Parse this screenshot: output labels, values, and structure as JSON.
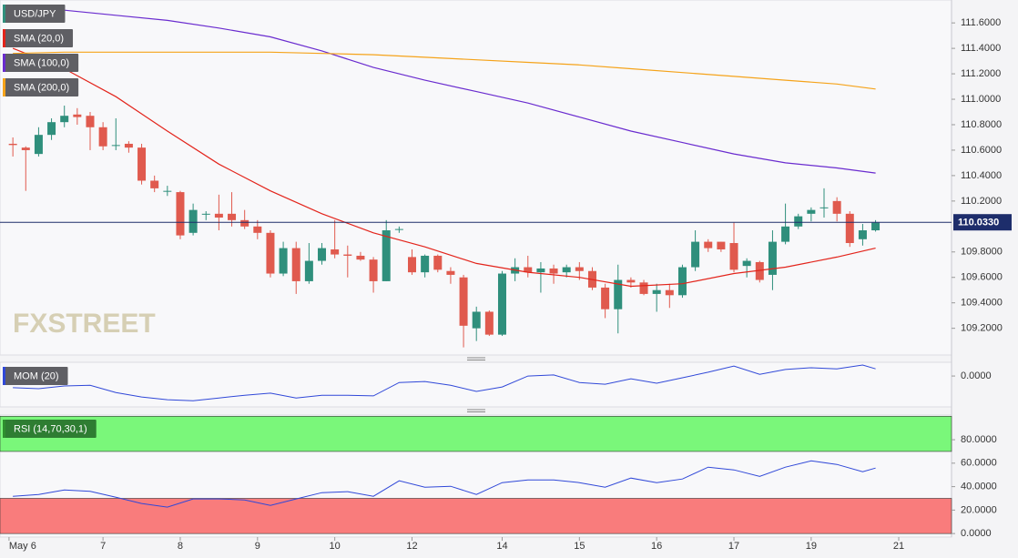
{
  "chart_data": [
    {
      "type": "candlestick",
      "title": "USD/JPY",
      "watermark": "FXSTREET",
      "x": [
        0,
        1,
        2,
        3,
        4,
        5,
        6,
        7,
        8,
        9,
        10,
        11,
        12,
        13,
        14,
        15,
        16,
        17,
        18,
        19,
        20,
        21,
        22,
        23,
        24,
        25,
        26,
        27,
        28,
        29,
        30,
        31,
        32,
        33,
        34,
        35,
        36,
        37,
        38,
        39,
        40,
        41,
        42,
        43,
        44,
        45,
        46,
        47,
        48,
        49,
        50,
        51,
        52,
        53,
        54,
        55,
        56,
        57,
        58,
        59,
        60,
        61,
        62,
        63,
        64,
        65,
        66,
        67
      ],
      "open": [
        110.65,
        110.62,
        110.57,
        110.72,
        110.82,
        110.88,
        110.87,
        110.78,
        110.64,
        110.65,
        110.62,
        110.36,
        110.28,
        110.27,
        109.95,
        110.1,
        110.1,
        110.1,
        110.05,
        110.0,
        109.95,
        109.63,
        109.83,
        109.57,
        109.73,
        109.82,
        109.78,
        109.77,
        109.74,
        109.57,
        109.98,
        109.76,
        109.64,
        109.77,
        109.65,
        109.6,
        109.2,
        109.33,
        109.15,
        109.63,
        109.68,
        109.64,
        109.67,
        109.64,
        109.68,
        109.65,
        109.52,
        109.35,
        109.58,
        109.56,
        109.47,
        109.5,
        109.46,
        109.68,
        109.88,
        109.88,
        109.87,
        109.69,
        109.72,
        109.62,
        109.88,
        110.0,
        110.1,
        110.15,
        110.2,
        110.1,
        109.9,
        109.97
      ],
      "high": [
        110.7,
        110.63,
        110.78,
        110.85,
        110.95,
        110.93,
        110.9,
        110.82,
        110.85,
        110.67,
        110.65,
        110.4,
        110.32,
        110.28,
        110.18,
        110.12,
        110.25,
        110.27,
        110.13,
        110.05,
        109.97,
        109.88,
        109.88,
        109.87,
        109.87,
        110.05,
        109.85,
        109.8,
        109.76,
        110.05,
        110.0,
        109.82,
        109.78,
        109.78,
        109.68,
        109.62,
        109.37,
        109.34,
        109.65,
        109.75,
        109.77,
        109.72,
        109.7,
        109.7,
        109.72,
        109.68,
        109.55,
        109.7,
        109.6,
        109.58,
        109.55,
        109.55,
        109.7,
        109.97,
        109.9,
        109.88,
        110.03,
        109.75,
        109.73,
        109.97,
        110.18,
        110.1,
        110.15,
        110.3,
        110.23,
        110.12,
        110.02,
        110.05
      ],
      "low": [
        110.55,
        110.28,
        110.55,
        110.68,
        110.78,
        110.8,
        110.6,
        110.6,
        110.6,
        110.58,
        110.33,
        110.27,
        110.24,
        109.9,
        109.93,
        110.05,
        109.97,
        110.0,
        109.98,
        109.9,
        109.6,
        109.61,
        109.47,
        109.55,
        109.7,
        109.75,
        109.6,
        109.73,
        109.48,
        109.57,
        109.95,
        109.62,
        109.6,
        109.64,
        109.55,
        109.05,
        109.1,
        109.14,
        109.14,
        109.57,
        109.6,
        109.48,
        109.55,
        109.6,
        109.58,
        109.5,
        109.28,
        109.16,
        109.52,
        109.46,
        109.33,
        109.36,
        109.44,
        109.65,
        109.8,
        109.8,
        109.64,
        109.6,
        109.56,
        109.5,
        109.86,
        109.98,
        110.04,
        110.07,
        110.04,
        109.84,
        109.85,
        109.96
      ],
      "close": [
        110.64,
        110.6,
        110.72,
        110.82,
        110.87,
        110.86,
        110.78,
        110.63,
        110.64,
        110.62,
        110.36,
        110.3,
        110.28,
        109.93,
        110.13,
        110.1,
        110.07,
        110.05,
        110.0,
        109.95,
        109.63,
        109.83,
        109.57,
        109.73,
        109.83,
        109.78,
        109.77,
        109.74,
        109.57,
        109.97,
        109.98,
        109.64,
        109.77,
        109.66,
        109.62,
        109.22,
        109.33,
        109.15,
        109.63,
        109.68,
        109.64,
        109.67,
        109.63,
        109.68,
        109.65,
        109.52,
        109.35,
        109.58,
        109.56,
        109.47,
        109.5,
        109.46,
        109.68,
        109.88,
        109.83,
        109.82,
        109.66,
        109.73,
        109.58,
        109.88,
        110.0,
        110.08,
        110.13,
        110.15,
        110.1,
        109.87,
        109.97,
        110.03
      ],
      "up_color": "#2f8f7c",
      "down_color": "#e05a4e",
      "title_color": "#2f8f7c",
      "xlim": [
        -1,
        72.9
      ],
      "ylim": [
        108.99,
        111.78
      ],
      "yticks": [
        {
          "value": 109.2,
          "label": "109.2000"
        },
        {
          "value": 109.4,
          "label": "109.4000"
        },
        {
          "value": 109.6,
          "label": "109.6000"
        },
        {
          "value": 109.8,
          "label": "109.8000"
        },
        {
          "value": 110.2,
          "label": "110.2000"
        },
        {
          "value": 110.4,
          "label": "110.4000"
        },
        {
          "value": 110.6,
          "label": "110.6000"
        },
        {
          "value": 110.8,
          "label": "110.8000"
        },
        {
          "value": 111.0,
          "label": "111.0000"
        },
        {
          "value": 111.2,
          "label": "111.2000"
        },
        {
          "value": 111.4,
          "label": "111.4000"
        },
        {
          "value": 111.6,
          "label": "111.6000"
        }
      ],
      "last_price": {
        "value": 110.033,
        "label": "110.0330"
      },
      "series": [
        {
          "name": "SMA (20,0)",
          "color": "#e3241b",
          "x": [
            0,
            4,
            8,
            12,
            16,
            20,
            24,
            28,
            32,
            36,
            40,
            44,
            48,
            52,
            56,
            60,
            64,
            67
          ],
          "values": [
            111.4,
            111.24,
            111.02,
            110.75,
            110.49,
            110.28,
            110.1,
            109.95,
            109.84,
            109.71,
            109.64,
            109.6,
            109.53,
            109.55,
            109.63,
            109.68,
            109.76,
            109.83
          ]
        },
        {
          "name": "SMA (100,0)",
          "color": "#6a2ccf",
          "x": [
            0,
            4,
            8,
            12,
            16,
            20,
            24,
            28,
            32,
            36,
            40,
            44,
            48,
            52,
            56,
            60,
            64,
            67
          ],
          "values": [
            111.73,
            111.7,
            111.66,
            111.62,
            111.56,
            111.49,
            111.38,
            111.25,
            111.15,
            111.06,
            110.97,
            110.86,
            110.75,
            110.66,
            110.57,
            110.5,
            110.46,
            110.42
          ]
        },
        {
          "name": "SMA (200,0)",
          "color": "#f5a31a",
          "x": [
            0,
            4,
            8,
            12,
            16,
            20,
            24,
            28,
            32,
            36,
            40,
            44,
            48,
            52,
            56,
            60,
            64,
            67
          ],
          "values": [
            111.36,
            111.37,
            111.37,
            111.37,
            111.37,
            111.37,
            111.36,
            111.35,
            111.33,
            111.31,
            111.29,
            111.27,
            111.24,
            111.21,
            111.18,
            111.15,
            111.12,
            111.08
          ]
        }
      ]
    },
    {
      "type": "line",
      "title": "MOM (20)",
      "color": "#3048d8",
      "x": [
        0,
        2,
        4,
        6,
        8,
        10,
        12,
        14,
        16,
        18,
        20,
        22,
        24,
        26,
        28,
        30,
        32,
        34,
        36,
        38,
        40,
        42,
        44,
        46,
        48,
        50,
        52,
        54,
        56,
        58,
        60,
        62,
        64,
        66,
        67
      ],
      "values": [
        -0.34,
        -0.37,
        -0.29,
        -0.27,
        -0.48,
        -0.61,
        -0.69,
        -0.72,
        -0.64,
        -0.56,
        -0.5,
        -0.64,
        -0.56,
        -0.56,
        -0.58,
        -0.19,
        -0.16,
        -0.27,
        -0.45,
        -0.32,
        0,
        0.03,
        -0.19,
        -0.24,
        -0.08,
        -0.21,
        -0.05,
        0.11,
        0.29,
        0.05,
        0.19,
        0.24,
        0.21,
        0.32,
        0.21
      ],
      "xlim": [
        -1,
        72.9
      ],
      "ylim": [
        -0.9,
        0.4
      ],
      "yticks": [
        {
          "value": 0,
          "label": "0.0000"
        }
      ]
    },
    {
      "type": "line",
      "title": "RSI (14,70,30,1)",
      "color": "#3048d8",
      "title_color": "#2f8f2f",
      "x": [
        0,
        2,
        4,
        6,
        8,
        10,
        12,
        14,
        16,
        18,
        20,
        22,
        24,
        26,
        28,
        30,
        32,
        34,
        36,
        38,
        40,
        42,
        44,
        46,
        48,
        50,
        52,
        54,
        56,
        58,
        60,
        62,
        64,
        66,
        67
      ],
      "values": [
        31.8,
        33.3,
        37.2,
        36,
        31,
        25.6,
        22.5,
        29.5,
        29.5,
        28.7,
        24,
        29.5,
        34.9,
        35.7,
        31.8,
        45,
        39.5,
        40.3,
        33.3,
        43.4,
        45.7,
        45.7,
        43.4,
        39.5,
        47.3,
        43.4,
        46.5,
        56.6,
        54.3,
        48.8,
        56.6,
        62,
        58.9,
        52.7,
        55.8
      ],
      "bands": [
        {
          "from": 70,
          "to": 100,
          "color": "#7af77a"
        },
        {
          "from": 0,
          "to": 30,
          "color": "#f97c7c"
        }
      ],
      "xlim": [
        -1,
        72.9
      ],
      "ylim": [
        -3,
        101
      ],
      "yticks": [
        {
          "value": 0,
          "label": "0.0000"
        },
        {
          "value": 20,
          "label": "20.0000"
        },
        {
          "value": 40,
          "label": "40.0000"
        },
        {
          "value": 60,
          "label": "60.0000"
        },
        {
          "value": 80,
          "label": "80.0000"
        }
      ],
      "xticks": [
        {
          "value": -0.3,
          "label": "May 6"
        },
        {
          "value": 7,
          "label": "7"
        },
        {
          "value": 13,
          "label": "8"
        },
        {
          "value": 19,
          "label": "9"
        },
        {
          "value": 25,
          "label": "10"
        },
        {
          "value": 31,
          "label": "12"
        },
        {
          "value": 38,
          "label": "14"
        },
        {
          "value": 44,
          "label": "15"
        },
        {
          "value": 50,
          "label": "16"
        },
        {
          "value": 56,
          "label": "17"
        },
        {
          "value": 62,
          "label": "19"
        },
        {
          "value": 68.8,
          "label": "21"
        }
      ]
    }
  ]
}
